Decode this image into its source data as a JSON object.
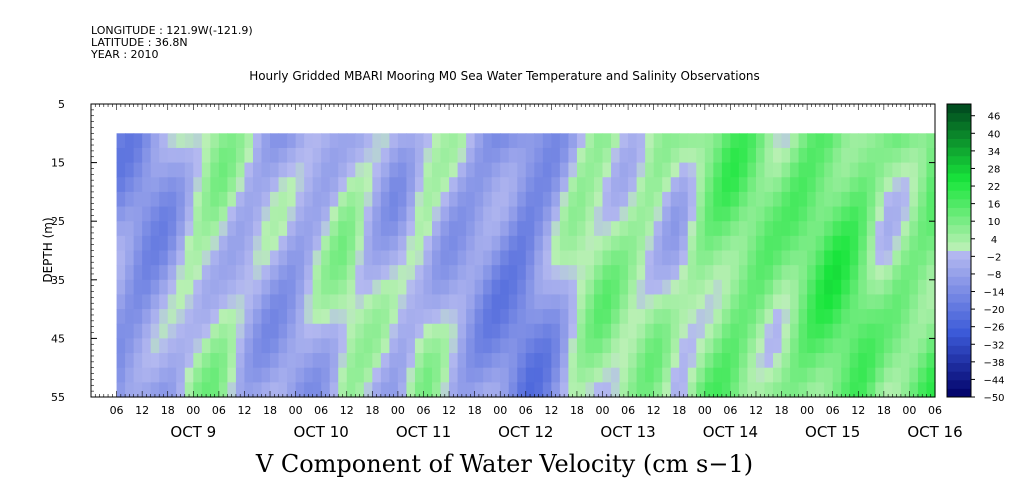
{
  "header": {
    "longitude": "LONGITUDE : 121.9W(-121.9)",
    "latitude": "LATITUDE : 36.8N",
    "year": "YEAR : 2010"
  },
  "colors": {
    "background": "#ffffff",
    "frame": "#000000",
    "blue_dark": "#000066",
    "blue_mid": "#3c5ad8",
    "blue_light": "#b4b9f0",
    "green_light": "#b9f0b4",
    "green_mid": "#19e63c",
    "green_dark": "#00461e"
  },
  "chart_data": {
    "type": "heatmap",
    "title": "Hourly Gridded MBARI Mooring M0 Sea Water Temperature and Salinity Observations",
    "xlabel": "",
    "ylabel": "DEPTH (m)",
    "bottom_title": "V Component of Water Velocity (cm s−1)",
    "y_ticks": [
      5,
      15,
      25,
      35,
      45,
      55
    ],
    "ylim": [
      5,
      55
    ],
    "y_inverted": true,
    "data_depth_top": 10,
    "x_hour_labels": [
      "06",
      "12",
      "18",
      "00",
      "06",
      "12",
      "18",
      "00",
      "06",
      "12",
      "18",
      "00",
      "06",
      "12",
      "18",
      "00",
      "06",
      "12",
      "18",
      "00",
      "06",
      "12",
      "18",
      "00",
      "06",
      "12",
      "18",
      "00",
      "06",
      "12",
      "18",
      "00",
      "06"
    ],
    "x_day_labels": [
      "OCT  9",
      "OCT 10",
      "OCT 11",
      "OCT 12",
      "OCT 13",
      "OCT 14",
      "OCT 15",
      "OCT 16"
    ],
    "xlim_hours": [
      -18,
      180
    ],
    "data_start_hour": -12,
    "colorbar": {
      "ticks": [
        46,
        40,
        34,
        28,
        22,
        16,
        10,
        4,
        -2,
        -8,
        -14,
        -20,
        -26,
        -32,
        -38,
        -44,
        -50
      ],
      "range": [
        -50,
        50
      ]
    },
    "profile": {
      "hours": [
        -12,
        -6,
        0,
        6,
        12,
        18,
        24,
        30,
        36,
        42,
        48,
        54,
        60,
        66,
        72,
        78,
        84,
        90,
        96,
        102,
        108,
        114,
        120,
        126,
        132,
        138,
        144,
        150,
        156,
        162,
        168,
        174,
        180
      ],
      "values": [
        -10,
        -12,
        -8,
        2,
        4,
        -3,
        -6,
        -8,
        -3,
        4,
        -2,
        -6,
        2,
        -4,
        -8,
        -12,
        -16,
        -10,
        2,
        6,
        3,
        4,
        -2,
        8,
        12,
        10,
        6,
        12,
        16,
        14,
        4,
        8,
        12
      ]
    }
  }
}
